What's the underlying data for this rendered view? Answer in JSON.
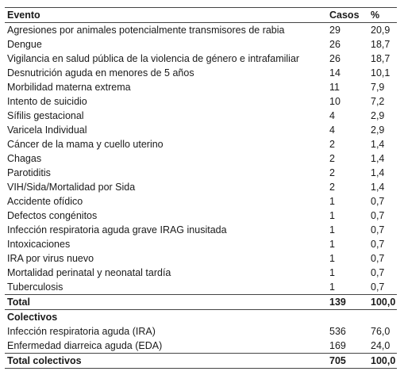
{
  "table": {
    "headers": {
      "event": "Evento",
      "cases": "Casos",
      "pct": "%"
    },
    "rows": [
      {
        "event": "Agresiones por animales potencialmente transmisores de rabia",
        "cases": "29",
        "pct": "20,9"
      },
      {
        "event": "Dengue",
        "cases": "26",
        "pct": "18,7"
      },
      {
        "event": "Vigilancia en salud pública de la violencia de género e intrafamiliar",
        "cases": "26",
        "pct": "18,7"
      },
      {
        "event": "Desnutrición aguda en menores de 5 años",
        "cases": "14",
        "pct": "10,1"
      },
      {
        "event": "Morbilidad materna extrema",
        "cases": "11",
        "pct": "7,9"
      },
      {
        "event": "Intento de suicidio",
        "cases": "10",
        "pct": "7,2"
      },
      {
        "event": "Sífilis gestacional",
        "cases": "4",
        "pct": "2,9"
      },
      {
        "event": "Varicela Individual",
        "cases": "4",
        "pct": "2,9"
      },
      {
        "event": "Cáncer de la mama y cuello uterino",
        "cases": "2",
        "pct": "1,4"
      },
      {
        "event": "Chagas",
        "cases": "2",
        "pct": "1,4"
      },
      {
        "event": "Parotiditis",
        "cases": "2",
        "pct": "1,4"
      },
      {
        "event": "VIH/Sida/Mortalidad por Sida",
        "cases": "2",
        "pct": "1,4"
      },
      {
        "event": "Accidente ofídico",
        "cases": "1",
        "pct": "0,7"
      },
      {
        "event": "Defectos congénitos",
        "cases": "1",
        "pct": "0,7"
      },
      {
        "event": "Infección respiratoria aguda grave IRAG inusitada",
        "cases": "1",
        "pct": "0,7"
      },
      {
        "event": "Intoxicaciones",
        "cases": "1",
        "pct": "0,7"
      },
      {
        "event": "IRA por virus nuevo",
        "cases": "1",
        "pct": "0,7"
      },
      {
        "event": "Mortalidad perinatal y neonatal tardía",
        "cases": "1",
        "pct": "0,7"
      },
      {
        "event": "Tuberculosis",
        "cases": "1",
        "pct": "0,7"
      }
    ],
    "total": {
      "label": "Total",
      "cases": "139",
      "pct": "100,0"
    },
    "collective_header": "Colectivos",
    "collective_rows": [
      {
        "event": "Infección respiratoria aguda (IRA)",
        "cases": "536",
        "pct": "76,0"
      },
      {
        "event": "Enfermedad diarreica aguda (EDA)",
        "cases": "169",
        "pct": "24,0"
      }
    ],
    "collective_total": {
      "label": "Total colectivos",
      "cases": "705",
      "pct": "100,0"
    }
  }
}
